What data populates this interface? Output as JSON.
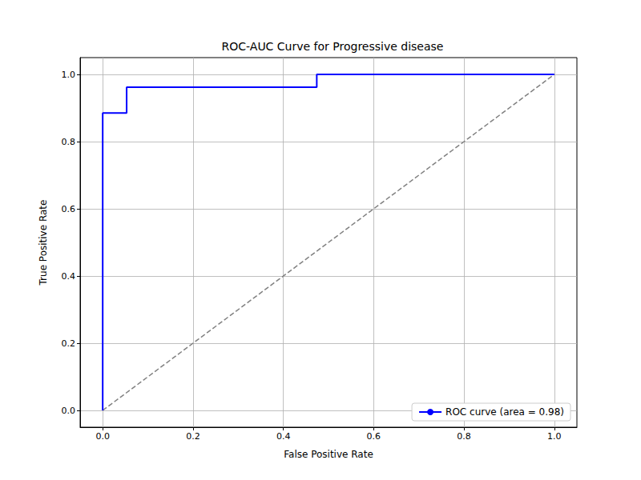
{
  "chart_data": {
    "type": "line",
    "title": "ROC-AUC Curve for Progressive disease",
    "x_label": "False Positive Rate",
    "y_label": "True Positive Rate",
    "series": [
      {
        "name": "ROC curve (area = 0.98)",
        "color": "#0000ff",
        "line_style": "solid",
        "x": [
          0.0,
          0.0,
          0.053,
          0.053,
          0.474,
          0.474,
          1.0
        ],
        "values": [
          0.0,
          0.885,
          0.885,
          0.962,
          0.962,
          1.0,
          1.0
        ]
      },
      {
        "color": "#808080",
        "line_style": "dashed",
        "x": [
          0.0,
          1.0
        ],
        "values": [
          0.0,
          1.0
        ]
      }
    ],
    "xlim": [
      -0.05,
      1.05
    ],
    "ylim": [
      -0.05,
      1.05
    ],
    "xticks": [
      {
        "value": 0,
        "label": "0.0"
      },
      0.2,
      0.4,
      0.6,
      0.8,
      {
        "value": 1,
        "label": "1.0"
      }
    ],
    "yticks": [
      {
        "value": 0,
        "label": "0.0"
      },
      0.2,
      0.4,
      0.6,
      0.8,
      {
        "value": 1,
        "label": "1.0"
      }
    ],
    "grid": true,
    "legend": "lower right"
  }
}
